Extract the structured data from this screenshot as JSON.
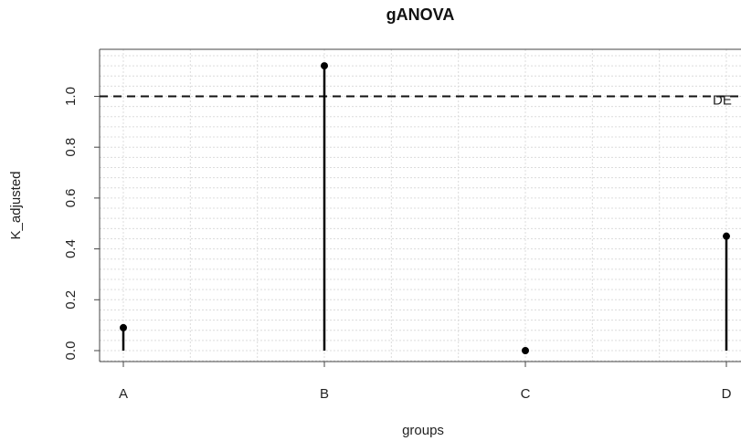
{
  "chart_data": {
    "type": "scatter",
    "style": "lollipop",
    "title": "gANOVA",
    "xlabel": "groups",
    "ylabel": "K_adjusted",
    "categories": [
      "A",
      "B",
      "C",
      "D"
    ],
    "values": [
      0.09,
      1.12,
      0.0,
      0.45
    ],
    "ylim": [
      -0.05,
      1.17
    ],
    "yticks": [
      "0.0",
      "0.2",
      "0.4",
      "0.6",
      "0.8",
      "1.0"
    ],
    "reference_line": {
      "value": 1.0,
      "style": "dashed",
      "label": "DE"
    },
    "grid": true
  }
}
